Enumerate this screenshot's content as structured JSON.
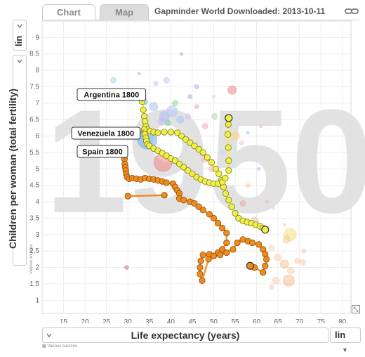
{
  "tabs": {
    "chart": "Chart",
    "map": "Map"
  },
  "title": "Gapminder World Downloaded: 2013-10-11",
  "icons": {
    "link": "link-icon",
    "expand": "expand-icon",
    "sources": "sources-icon"
  },
  "y_axis": {
    "label": "Children per woman (total fertility)",
    "scale": "lin",
    "sources": "Various sources"
  },
  "x_axis": {
    "label": "Life expectancy (years)",
    "scale": "lin",
    "sources": "Various sources"
  },
  "year_watermark": "1950",
  "chart_data": {
    "type": "scatter",
    "xlim": [
      10,
      82
    ],
    "ylim": [
      0.6,
      9.5
    ],
    "xticks": [
      15,
      20,
      25,
      30,
      35,
      40,
      45,
      50,
      55,
      60,
      65,
      70,
      75,
      80
    ],
    "yticks": [
      1,
      1.5,
      2,
      2.5,
      3,
      3.5,
      4,
      4.5,
      5,
      5.5,
      6,
      6.5,
      7,
      7.5,
      8,
      8.5,
      9
    ],
    "grid": true,
    "trails": [
      {
        "name": "Argentina",
        "label": "Argentina 1800",
        "color": "#f0f047",
        "points": [
          [
            33.3,
            7.05
          ],
          [
            33.6,
            6.8
          ],
          [
            33.8,
            6.6
          ],
          [
            34.0,
            6.45
          ],
          [
            34.2,
            6.3
          ],
          [
            34.5,
            6.2
          ],
          [
            35.2,
            6.15
          ],
          [
            36.0,
            6.12
          ],
          [
            37.0,
            6.1
          ],
          [
            38.5,
            6.12
          ],
          [
            40.0,
            6.12
          ],
          [
            41.5,
            6.1
          ],
          [
            42.5,
            6.0
          ],
          [
            43.5,
            5.9
          ],
          [
            44.5,
            5.8
          ],
          [
            45.5,
            5.7
          ],
          [
            46.5,
            5.6
          ],
          [
            47.5,
            5.5
          ],
          [
            48.5,
            5.35
          ],
          [
            49.5,
            5.2
          ],
          [
            50.5,
            5.0
          ],
          [
            51.2,
            4.85
          ],
          [
            51.8,
            4.65
          ],
          [
            52.3,
            4.45
          ],
          [
            52.8,
            4.25
          ],
          [
            53.5,
            4.05
          ],
          [
            54.2,
            3.85
          ],
          [
            55.0,
            3.65
          ],
          [
            55.8,
            3.5
          ],
          [
            56.8,
            3.42
          ],
          [
            57.8,
            3.38
          ],
          [
            58.8,
            3.35
          ],
          [
            59.8,
            3.3
          ],
          [
            60.8,
            3.25
          ],
          [
            61.5,
            3.2
          ],
          [
            62.0,
            3.15
          ]
        ]
      },
      {
        "name": "Venezuela",
        "label": "Venezuela 1800",
        "color": "#f0f047",
        "points": [
          [
            33.8,
            6.2
          ],
          [
            34.0,
            6.05
          ],
          [
            34.2,
            5.95
          ],
          [
            34.3,
            5.85
          ],
          [
            34.6,
            5.75
          ],
          [
            35.0,
            5.7
          ],
          [
            36.0,
            5.62
          ],
          [
            37.0,
            5.55
          ],
          [
            38.0,
            5.48
          ],
          [
            39.0,
            5.4
          ],
          [
            40.0,
            5.32
          ],
          [
            41.0,
            5.25
          ],
          [
            42.0,
            5.15
          ],
          [
            43.0,
            5.05
          ],
          [
            44.0,
            4.95
          ],
          [
            45.0,
            4.85
          ],
          [
            46.0,
            4.75
          ],
          [
            47.0,
            4.68
          ],
          [
            48.0,
            4.62
          ],
          [
            49.0,
            4.58
          ],
          [
            50.0,
            4.55
          ],
          [
            51.0,
            4.55
          ],
          [
            52.0,
            4.6
          ],
          [
            52.7,
            4.72
          ],
          [
            53.5,
            4.95
          ],
          [
            53.5,
            5.25
          ],
          [
            53.4,
            5.65
          ],
          [
            53.3,
            6.05
          ],
          [
            53.4,
            6.35
          ],
          [
            53.5,
            6.55
          ]
        ]
      },
      {
        "name": "Spain",
        "label": "Spain 1800",
        "color": "#f08c1e",
        "points": [
          [
            29.2,
            5.3
          ],
          [
            29.3,
            5.15
          ],
          [
            29.4,
            5.05
          ],
          [
            29.5,
            4.95
          ],
          [
            29.6,
            4.85
          ],
          [
            29.8,
            4.75
          ],
          [
            30.3,
            4.7
          ],
          [
            31.0,
            4.72
          ],
          [
            32.0,
            4.7
          ],
          [
            33.0,
            4.68
          ],
          [
            34.0,
            4.72
          ],
          [
            35.0,
            4.7
          ],
          [
            36.0,
            4.68
          ],
          [
            37.0,
            4.65
          ],
          [
            38.0,
            4.62
          ],
          [
            39.0,
            4.58
          ],
          [
            40.5,
            4.55
          ],
          [
            41.0,
            4.45
          ],
          [
            41.5,
            4.35
          ],
          [
            42.0,
            4.25
          ],
          [
            42.0,
            4.1
          ],
          [
            43.0,
            4.05
          ],
          [
            44.5,
            4.0
          ],
          [
            45.5,
            3.95
          ],
          [
            46.5,
            3.85
          ],
          [
            47.5,
            3.75
          ],
          [
            49.0,
            3.62
          ],
          [
            50.0,
            3.5
          ],
          [
            51.0,
            3.35
          ],
          [
            52.0,
            3.2
          ],
          [
            53.0,
            3.05
          ],
          [
            53.0,
            2.75
          ],
          [
            52.0,
            2.55
          ],
          [
            51.0,
            2.45
          ],
          [
            49.0,
            2.4
          ],
          [
            47.5,
            2.38
          ],
          [
            47.0,
            2.2
          ],
          [
            46.8,
            2.0
          ],
          [
            46.8,
            1.8
          ],
          [
            47.3,
            1.6
          ],
          [
            48.8,
            2.25
          ],
          [
            50.0,
            2.35
          ],
          [
            51.5,
            2.38
          ],
          [
            53.0,
            2.45
          ],
          [
            54.5,
            2.55
          ],
          [
            55.5,
            2.75
          ],
          [
            56.8,
            2.85
          ],
          [
            58.0,
            2.8
          ],
          [
            59.0,
            2.75
          ],
          [
            60.5,
            2.7
          ],
          [
            61.5,
            2.55
          ],
          [
            62.0,
            2.4
          ],
          [
            62.3,
            2.25
          ],
          [
            62.0,
            2.05
          ],
          [
            61.5,
            1.85
          ],
          [
            59.5,
            2.0
          ],
          [
            58.5,
            2.05
          ]
        ],
        "outlier_segment": [
          [
            30.0,
            4.17
          ],
          [
            38.5,
            4.2
          ]
        ]
      }
    ],
    "bubbles": [
      {
        "x": 34.5,
        "y": 5.9,
        "r": 14,
        "color": "#74b7e8",
        "opacity": 0.6
      },
      {
        "x": 38.2,
        "y": 5.2,
        "r": 13,
        "color": "#f07a7a",
        "opacity": 0.5
      },
      {
        "x": 33.8,
        "y": 7.05,
        "r": 5,
        "color": "#74b7e8",
        "opacity": 0.5
      },
      {
        "x": 36.0,
        "y": 6.9,
        "r": 6,
        "color": "#a3c8f0",
        "opacity": 0.55
      },
      {
        "x": 38.5,
        "y": 6.6,
        "r": 7,
        "color": "#b0b9f0",
        "opacity": 0.55
      },
      {
        "x": 40.3,
        "y": 6.75,
        "r": 8,
        "color": "#b7c7f5",
        "opacity": 0.55
      },
      {
        "x": 39.3,
        "y": 6.4,
        "r": 4,
        "color": "#7dd08a",
        "opacity": 0.55
      },
      {
        "x": 37.8,
        "y": 6.45,
        "r": 5,
        "color": "#c7b7f0",
        "opacity": 0.55
      },
      {
        "x": 42.2,
        "y": 6.5,
        "r": 5,
        "color": "#a0c8f0",
        "opacity": 0.55
      },
      {
        "x": 41.0,
        "y": 7.0,
        "r": 4,
        "color": "#8ed28e",
        "opacity": 0.5
      },
      {
        "x": 44.0,
        "y": 6.6,
        "r": 4,
        "color": "#c8c8f0",
        "opacity": 0.5
      },
      {
        "x": 46.0,
        "y": 6.9,
        "r": 3,
        "color": "#f2a4b5",
        "opacity": 0.5
      },
      {
        "x": 48.0,
        "y": 6.3,
        "r": 4,
        "color": "#f2a4b5",
        "opacity": 0.5
      },
      {
        "x": 50.2,
        "y": 6.6,
        "r": 4,
        "color": "#a8d8a8",
        "opacity": 0.5
      },
      {
        "x": 54.3,
        "y": 7.4,
        "r": 6,
        "color": "#f07a7a",
        "opacity": 0.5
      },
      {
        "x": 55.0,
        "y": 6.0,
        "r": 6,
        "color": "#f5d67a",
        "opacity": 0.5
      },
      {
        "x": 46.0,
        "y": 7.5,
        "r": 3,
        "color": "#9ab6f0",
        "opacity": 0.5
      },
      {
        "x": 39.0,
        "y": 7.7,
        "r": 4,
        "color": "#c0c0f0",
        "opacity": 0.5
      },
      {
        "x": 44.5,
        "y": 7.2,
        "r": 3,
        "color": "#a8a8f0",
        "opacity": 0.5
      },
      {
        "x": 36.5,
        "y": 7.6,
        "r": 3,
        "color": "#b0c8f0",
        "opacity": 0.5
      },
      {
        "x": 42.5,
        "y": 8.5,
        "r": 2,
        "color": "#a8a8a8",
        "opacity": 0.5
      },
      {
        "x": 26.6,
        "y": 7.7,
        "r": 4,
        "color": "#9ad6e8",
        "opacity": 0.5
      },
      {
        "x": 32.6,
        "y": 7.9,
        "r": 2,
        "color": "#b0b0f0",
        "opacity": 0.5
      },
      {
        "x": 48.0,
        "y": 5.3,
        "r": 5,
        "color": "#f2b0b0",
        "opacity": 0.45
      },
      {
        "x": 49.5,
        "y": 5.0,
        "r": 4,
        "color": "#f2a4b5",
        "opacity": 0.45
      },
      {
        "x": 52.0,
        "y": 5.5,
        "r": 4,
        "color": "#c8d8f0",
        "opacity": 0.45
      },
      {
        "x": 56.5,
        "y": 5.8,
        "r": 3,
        "color": "#f0c0c0",
        "opacity": 0.45
      },
      {
        "x": 58.0,
        "y": 4.5,
        "r": 3,
        "color": "#f5c8a0",
        "opacity": 0.45
      },
      {
        "x": 60.5,
        "y": 5.0,
        "r": 2,
        "color": "#b0b0f0",
        "opacity": 0.45
      },
      {
        "x": 56.8,
        "y": 3.95,
        "r": 4,
        "color": "#f5a0a0",
        "opacity": 0.45
      },
      {
        "x": 59.5,
        "y": 3.4,
        "r": 6,
        "color": "#f5b2a0",
        "opacity": 0.45
      },
      {
        "x": 66.5,
        "y": 3.3,
        "r": 2,
        "color": "#f5c8a0",
        "opacity": 0.45
      },
      {
        "x": 67.8,
        "y": 3.0,
        "r": 9,
        "color": "#f5e07a",
        "opacity": 0.5
      },
      {
        "x": 67.0,
        "y": 2.85,
        "r": 5,
        "color": "#f5c88a",
        "opacity": 0.45
      },
      {
        "x": 65.0,
        "y": 2.3,
        "r": 5,
        "color": "#f5c8a0",
        "opacity": 0.45
      },
      {
        "x": 66.5,
        "y": 2.1,
        "r": 6,
        "color": "#f5b88a",
        "opacity": 0.45
      },
      {
        "x": 68.0,
        "y": 1.9,
        "r": 5,
        "color": "#f5c8a0",
        "opacity": 0.45
      },
      {
        "x": 69.5,
        "y": 2.2,
        "r": 4,
        "color": "#f5c8a0",
        "opacity": 0.45
      },
      {
        "x": 70.8,
        "y": 2.15,
        "r": 4,
        "color": "#f5c8a0",
        "opacity": 0.45
      },
      {
        "x": 67.5,
        "y": 1.6,
        "r": 8,
        "color": "#f2b08a",
        "opacity": 0.45
      },
      {
        "x": 64.5,
        "y": 1.6,
        "r": 5,
        "color": "#f5c8a0",
        "opacity": 0.45
      },
      {
        "x": 71.0,
        "y": 2.5,
        "r": 3,
        "color": "#f5c8a0",
        "opacity": 0.45
      },
      {
        "x": 63.5,
        "y": 2.6,
        "r": 4,
        "color": "#f5d0b0",
        "opacity": 0.45
      },
      {
        "x": 62.0,
        "y": 1.95,
        "r": 3,
        "color": "#f5c8a0",
        "opacity": 0.45
      },
      {
        "x": 63.5,
        "y": 1.4,
        "r": 3,
        "color": "#f0c0b0",
        "opacity": 0.45
      },
      {
        "x": 29.7,
        "y": 2.0,
        "r": 3,
        "color": "#e07aa0",
        "opacity": 0.6
      },
      {
        "x": 62.5,
        "y": 4.0,
        "r": 2,
        "color": "#f5b0b0",
        "opacity": 0.45
      },
      {
        "x": 64.0,
        "y": 3.8,
        "r": 2,
        "color": "#f5c0a0",
        "opacity": 0.45
      },
      {
        "x": 58.0,
        "y": 6.1,
        "r": 2,
        "color": "#b0b0f0",
        "opacity": 0.45
      },
      {
        "x": 61.0,
        "y": 6.3,
        "r": 2,
        "color": "#f0b0b0",
        "opacity": 0.45
      },
      {
        "x": 50.0,
        "y": 7.2,
        "r": 2,
        "color": "#c0d0f0",
        "opacity": 0.45
      }
    ]
  }
}
